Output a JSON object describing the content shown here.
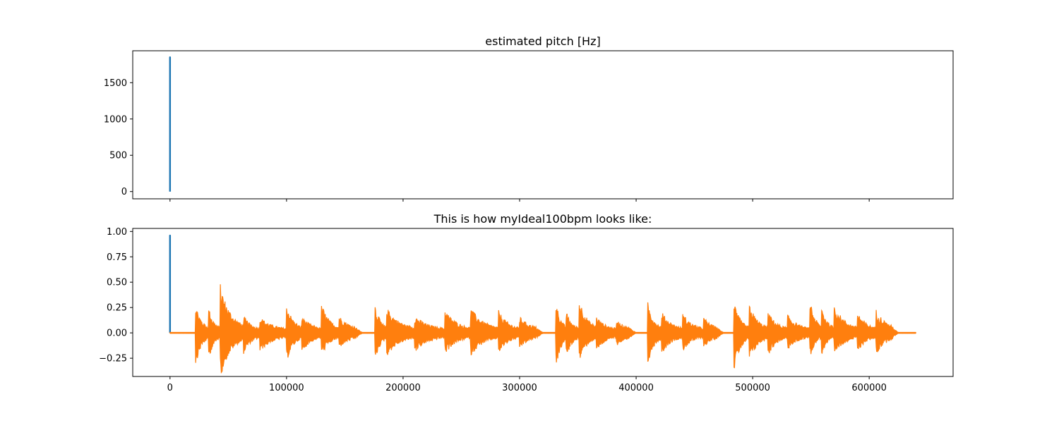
{
  "chart_data": [
    {
      "type": "line",
      "title": "estimated pitch [Hz]",
      "xlabel": "",
      "ylabel": "",
      "xlim": [
        -32000,
        672000
      ],
      "ylim": [
        -100,
        1940
      ],
      "xticks": [
        0,
        100000,
        200000,
        300000,
        400000,
        500000,
        600000
      ],
      "show_xtick_labels": false,
      "yticks": [
        0,
        500,
        1000,
        1500
      ],
      "ytick_labels": [
        "0",
        "500",
        "1000",
        "1500"
      ],
      "grid": false,
      "series": [
        {
          "color": "#1f77b4",
          "x": [
            0,
            0,
            0,
            0,
            0,
            0,
            0,
            0
          ],
          "y": [
            0,
            1850,
            20,
            1790,
            60,
            1500,
            10,
            1820
          ]
        }
      ]
    },
    {
      "type": "line",
      "title": "This is how myIdeal100bpm looks like:",
      "xlabel": "",
      "ylabel": "",
      "xlim": [
        -32000,
        672000
      ],
      "ylim": [
        -0.43,
        1.03
      ],
      "xticks": [
        0,
        100000,
        200000,
        300000,
        400000,
        500000,
        600000
      ],
      "xtick_labels": [
        "0",
        "100000",
        "200000",
        "300000",
        "400000",
        "500000",
        "600000"
      ],
      "yticks": [
        -0.25,
        0.0,
        0.25,
        0.5,
        0.75,
        1.0
      ],
      "ytick_labels": [
        "−0.25",
        "0.00",
        "0.25",
        "0.50",
        "0.75",
        "1.00"
      ],
      "grid": false,
      "series": [
        {
          "color": "#1f77b4",
          "x": [
            0,
            0,
            0
          ],
          "y": [
            0,
            0.96,
            0.01
          ]
        },
        {
          "color": "#ff7f0e",
          "kind": "audio-waveform",
          "x_range": [
            0,
            640000
          ],
          "silence_value": 0.0,
          "segments": [
            {
              "start": 22000,
              "end": 165000,
              "bursts": [
                {
                  "x": 22000,
                  "pos": 0.26,
                  "neg": -0.29
                },
                {
                  "x": 33000,
                  "pos": 0.23,
                  "neg": -0.24
                },
                {
                  "x": 43000,
                  "pos": 0.46,
                  "neg": -0.42
                },
                {
                  "x": 63000,
                  "pos": 0.14,
                  "neg": -0.18
                },
                {
                  "x": 77000,
                  "pos": 0.13,
                  "neg": -0.16
                },
                {
                  "x": 100000,
                  "pos": 0.26,
                  "neg": -0.26
                },
                {
                  "x": 113000,
                  "pos": 0.14,
                  "neg": -0.17
                },
                {
                  "x": 130000,
                  "pos": 0.26,
                  "neg": -0.2
                },
                {
                  "x": 145000,
                  "pos": 0.14,
                  "neg": -0.12
                }
              ]
            },
            {
              "start": 176000,
              "end": 320000,
              "bursts": [
                {
                  "x": 176000,
                  "pos": 0.25,
                  "neg": -0.25
                },
                {
                  "x": 186000,
                  "pos": 0.22,
                  "neg": -0.2
                },
                {
                  "x": 210000,
                  "pos": 0.14,
                  "neg": -0.16
                },
                {
                  "x": 236000,
                  "pos": 0.2,
                  "neg": -0.18
                },
                {
                  "x": 258000,
                  "pos": 0.22,
                  "neg": -0.2
                },
                {
                  "x": 282000,
                  "pos": 0.19,
                  "neg": -0.17
                },
                {
                  "x": 300000,
                  "pos": 0.13,
                  "neg": -0.12
                }
              ]
            },
            {
              "start": 331000,
              "end": 400000,
              "bursts": [
                {
                  "x": 331000,
                  "pos": 0.3,
                  "neg": -0.37
                },
                {
                  "x": 340000,
                  "pos": 0.18,
                  "neg": -0.22
                },
                {
                  "x": 351000,
                  "pos": 0.32,
                  "neg": -0.26
                },
                {
                  "x": 366000,
                  "pos": 0.13,
                  "neg": -0.15
                },
                {
                  "x": 383000,
                  "pos": 0.1,
                  "neg": -0.1
                }
              ]
            },
            {
              "start": 410000,
              "end": 475000,
              "bursts": [
                {
                  "x": 410000,
                  "pos": 0.27,
                  "neg": -0.28
                },
                {
                  "x": 422000,
                  "pos": 0.18,
                  "neg": -0.18
                },
                {
                  "x": 440000,
                  "pos": 0.16,
                  "neg": -0.15
                },
                {
                  "x": 458000,
                  "pos": 0.12,
                  "neg": -0.11
                }
              ]
            },
            {
              "start": 484000,
              "end": 625000,
              "bursts": [
                {
                  "x": 484000,
                  "pos": 0.26,
                  "neg": -0.34
                },
                {
                  "x": 497000,
                  "pos": 0.26,
                  "neg": -0.26
                },
                {
                  "x": 513000,
                  "pos": 0.18,
                  "neg": -0.2
                },
                {
                  "x": 530000,
                  "pos": 0.15,
                  "neg": -0.14
                },
                {
                  "x": 549000,
                  "pos": 0.33,
                  "neg": -0.22
                },
                {
                  "x": 559000,
                  "pos": 0.24,
                  "neg": -0.2
                },
                {
                  "x": 570000,
                  "pos": 0.25,
                  "neg": -0.18
                },
                {
                  "x": 590000,
                  "pos": 0.18,
                  "neg": -0.16
                },
                {
                  "x": 606000,
                  "pos": 0.2,
                  "neg": -0.18
                }
              ]
            }
          ]
        }
      ]
    }
  ]
}
